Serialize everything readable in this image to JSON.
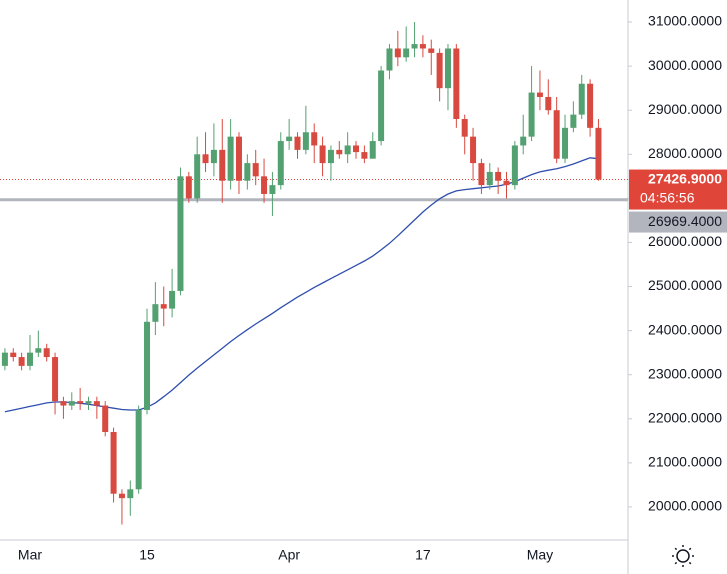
{
  "chart_data": {
    "type": "candlestick",
    "categories": [
      null,
      null,
      null,
      "Mar",
      null,
      null,
      null,
      null,
      null,
      null,
      null,
      null,
      null,
      null,
      null,
      null,
      null,
      "15",
      null,
      null,
      null,
      null,
      null,
      null,
      null,
      null,
      null,
      null,
      null,
      null,
      null,
      null,
      null,
      null,
      "Apr",
      null,
      null,
      null,
      null,
      null,
      null,
      null,
      null,
      null,
      null,
      null,
      null,
      null,
      null,
      null,
      "17",
      null,
      null,
      null,
      null,
      null,
      null,
      null,
      null,
      null,
      null,
      null,
      null,
      null,
      "May",
      null,
      null,
      null,
      null,
      null,
      null,
      null
    ],
    "open": [
      23200,
      23500,
      23400,
      23200,
      23500,
      23600,
      23400,
      22400,
      22300,
      22400,
      22350,
      22400,
      22300,
      21700,
      20300,
      20200,
      20400,
      22200,
      24200,
      24600,
      24500,
      24900,
      27500,
      27000,
      28000,
      27800,
      28100,
      27400,
      28400,
      27400,
      27800,
      27500,
      27100,
      27300,
      28300,
      28400,
      28100,
      28500,
      28200,
      27800,
      28100,
      28000,
      28200,
      28050,
      27900,
      28300,
      29900,
      30400,
      30200,
      30400,
      30500,
      30400,
      30300,
      29500,
      30400,
      28800,
      28400,
      27800,
      27300,
      27600,
      27400,
      27300,
      28200,
      28400,
      29400,
      29300,
      29000,
      27900,
      28600,
      28900,
      29600,
      28600
    ],
    "high": [
      23600,
      23600,
      23500,
      23900,
      24000,
      23700,
      23500,
      22500,
      22600,
      22700,
      22500,
      22500,
      22400,
      21800,
      20400,
      20600,
      22300,
      24500,
      25100,
      25000,
      25400,
      27700,
      27600,
      28400,
      28500,
      28700,
      28800,
      28800,
      28500,
      28000,
      28100,
      27900,
      27600,
      28500,
      28800,
      28500,
      29100,
      28700,
      28400,
      28200,
      28300,
      28500,
      28300,
      28200,
      28500,
      30000,
      30500,
      30800,
      30900,
      31000,
      30700,
      30600,
      30400,
      30500,
      30500,
      28900,
      28600,
      27900,
      27800,
      27700,
      27600,
      28300,
      28900,
      30000,
      29900,
      29700,
      29300,
      28900,
      29200,
      29800,
      29700,
      28800
    ],
    "low": [
      23100,
      23300,
      23100,
      23100,
      23400,
      23300,
      22100,
      22000,
      22200,
      22200,
      22200,
      22000,
      21600,
      20100,
      19600,
      19800,
      20300,
      22100,
      23900,
      24100,
      24300,
      24800,
      26900,
      26900,
      27600,
      27500,
      26900,
      27200,
      27100,
      27200,
      27300,
      26900,
      26600,
      27200,
      28100,
      27900,
      28000,
      27800,
      27500,
      27400,
      27900,
      27800,
      27900,
      27800,
      27900,
      28200,
      29700,
      30000,
      30100,
      30200,
      30200,
      29800,
      29200,
      29000,
      28600,
      28000,
      27400,
      27100,
      27200,
      27100,
      27000,
      27200,
      28000,
      28300,
      29000,
      28900,
      27800,
      27800,
      28500,
      28800,
      28400,
      27400
    ],
    "close": [
      23500,
      23400,
      23200,
      23500,
      23600,
      23400,
      22400,
      22300,
      22400,
      22350,
      22400,
      22300,
      21700,
      20300,
      20200,
      20400,
      22200,
      24200,
      24600,
      24500,
      24900,
      27500,
      27000,
      28000,
      27800,
      28100,
      27400,
      28400,
      27400,
      27800,
      27500,
      27100,
      27300,
      28300,
      28400,
      28100,
      28500,
      28200,
      27800,
      28100,
      28000,
      28200,
      28050,
      27900,
      28300,
      29900,
      30400,
      30200,
      30400,
      30500,
      30400,
      30300,
      29500,
      30400,
      28800,
      28400,
      27800,
      27300,
      27600,
      27400,
      27300,
      28200,
      28400,
      29400,
      29300,
      29000,
      27900,
      28600,
      28900,
      29600,
      28600,
      27426.9
    ],
    "up_color": "#53a070",
    "down_color": "#d8493f",
    "moving_average": {
      "color": "#2f4fae",
      "values": [
        22160,
        22200,
        22240,
        22280,
        22320,
        22360,
        22380,
        22380,
        22370,
        22350,
        22330,
        22300,
        22270,
        22240,
        22210,
        22200,
        22200,
        22260,
        22360,
        22500,
        22650,
        22820,
        22990,
        23150,
        23300,
        23450,
        23600,
        23750,
        23890,
        24020,
        24150,
        24270,
        24390,
        24520,
        24640,
        24760,
        24870,
        24980,
        25080,
        25180,
        25280,
        25380,
        25480,
        25580,
        25690,
        25830,
        25980,
        26150,
        26330,
        26510,
        26690,
        26850,
        26990,
        27100,
        27170,
        27200,
        27220,
        27240,
        27260,
        27280,
        27320,
        27380,
        27460,
        27540,
        27600,
        27640,
        27670,
        27720,
        27780,
        27850,
        27920,
        27900
      ]
    },
    "ylim": [
      19250,
      31500
    ],
    "yticks": [
      {
        "value": 20000,
        "label": "20000.0000"
      },
      {
        "value": 21000,
        "label": "21000.0000"
      },
      {
        "value": 22000,
        "label": "22000.0000"
      },
      {
        "value": 23000,
        "label": "23000.0000"
      },
      {
        "value": 24000,
        "label": "24000.0000"
      },
      {
        "value": 25000,
        "label": "25000.0000"
      },
      {
        "value": 26000,
        "label": "26000.0000"
      },
      {
        "value": 27000,
        "label": "27000.0000"
      },
      {
        "value": 28000,
        "label": "28000.0000"
      },
      {
        "value": 29000,
        "label": "29000.0000"
      },
      {
        "value": 30000,
        "label": "30000.0000"
      },
      {
        "value": 31000,
        "label": "31000.0000"
      }
    ],
    "last_price": {
      "value": 27426.9,
      "label": "27426.9000",
      "countdown": "04:56:56",
      "color": "#e0453a"
    },
    "price_line": {
      "value": 26969.4,
      "label": "26969.4000",
      "color": "#b2b5be"
    }
  }
}
